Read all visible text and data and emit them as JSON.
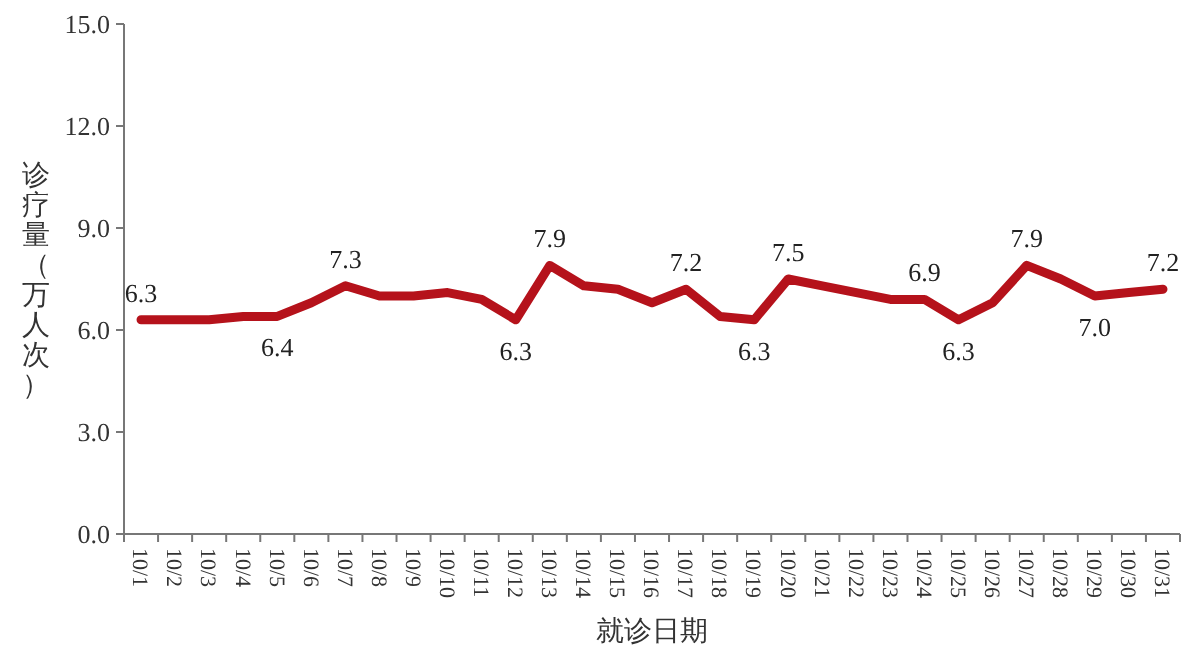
{
  "chart_data": {
    "type": "line",
    "xlabel": "就诊日期",
    "ylabel": "诊疗量（万人次）",
    "categories": [
      "10/1",
      "10/2",
      "10/3",
      "10/4",
      "10/5",
      "10/6",
      "10/7",
      "10/8",
      "10/9",
      "10/10",
      "10/11",
      "10/12",
      "10/13",
      "10/14",
      "10/15",
      "10/16",
      "10/17",
      "10/18",
      "10/19",
      "10/20",
      "10/21",
      "10/22",
      "10/23",
      "10/24",
      "10/25",
      "10/26",
      "10/27",
      "10/28",
      "10/29",
      "10/30",
      "10/31"
    ],
    "series": [
      {
        "color": "#b5121b",
        "values": [
          6.3,
          6.3,
          6.3,
          6.4,
          6.4,
          6.8,
          7.3,
          7.0,
          7.0,
          7.1,
          6.9,
          6.3,
          7.9,
          7.3,
          7.2,
          6.8,
          7.2,
          6.4,
          6.3,
          7.5,
          7.3,
          7.1,
          6.9,
          6.9,
          6.3,
          6.8,
          7.9,
          7.5,
          7.0,
          7.1,
          7.2
        ],
        "value_labels": [
          "6.3",
          null,
          null,
          null,
          "6.4",
          null,
          "7.3",
          null,
          null,
          null,
          null,
          "6.3",
          "7.9",
          null,
          null,
          null,
          "7.2",
          null,
          "6.3",
          "7.5",
          null,
          null,
          null,
          "6.9",
          "6.3",
          null,
          "7.9",
          null,
          "7.0",
          null,
          "7.2"
        ]
      }
    ],
    "ylim": [
      0,
      15
    ],
    "yticks": [
      {
        "value": 0,
        "label": "0.0"
      },
      {
        "value": 3,
        "label": "3.0"
      },
      {
        "value": 6,
        "label": "6.0"
      },
      {
        "value": 9,
        "label": "9.0"
      },
      {
        "value": 12,
        "label": "12.0"
      },
      {
        "value": 15,
        "label": "15.0"
      }
    ],
    "grid": false,
    "marker": "none",
    "line_style": "solid"
  }
}
